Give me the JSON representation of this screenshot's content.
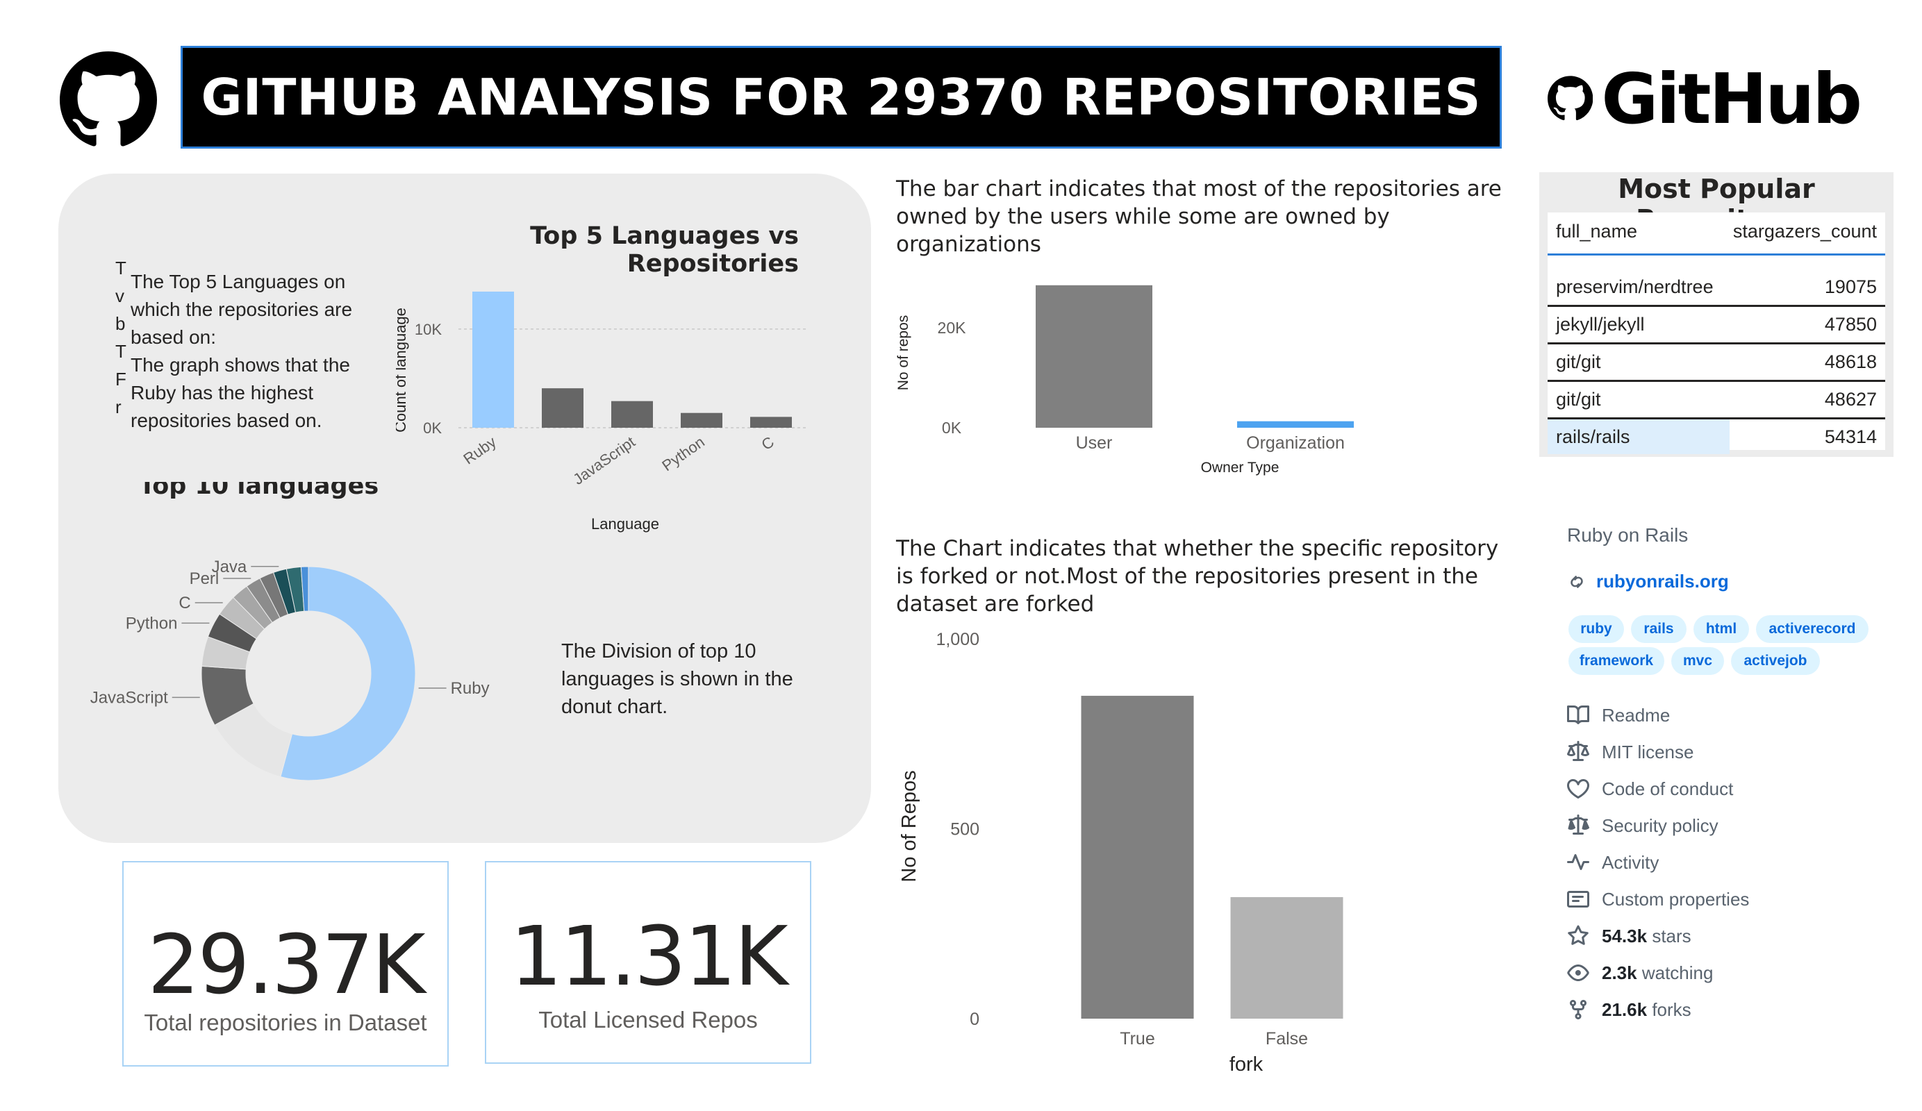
{
  "header": {
    "title": "GITHUB ANALYSIS FOR 29370 REPOSITORIES",
    "brand": "GitHub"
  },
  "languages_panel": {
    "truncated_letters": [
      "T",
      "v",
      "b",
      "T",
      "F",
      "r"
    ],
    "intro_text": [
      "The Top 5 Languages on",
      "which the repositories are",
      "based on:",
      "The graph shows that the",
      "Ruby has the highest",
      "repositories based on."
    ],
    "donut_description": [
      "The Division of top 10",
      "languages is shown in the",
      "donut chart."
    ]
  },
  "top5_chart": {
    "chart_data": {
      "type": "bar",
      "title": "Top 5 Languages vs Repositories",
      "xlabel": "Language",
      "ylabel": "Count of language",
      "categories": [
        "Ruby",
        "",
        "JavaScript",
        "Python",
        "C"
      ],
      "values": [
        13800,
        4000,
        2700,
        1500,
        1100
      ],
      "ylim": [
        0,
        14500
      ],
      "yticks": [
        "0K",
        "10K"
      ],
      "colors": [
        "#99ccff",
        "#666666",
        "#666666",
        "#666666",
        "#666666"
      ],
      "grid": true
    }
  },
  "top10_chart": {
    "chart_data": {
      "type": "pie",
      "title": "Top 10 languages",
      "categories": [
        "Ruby",
        "",
        "JavaScript",
        "",
        "Python",
        "C",
        "",
        "Perl",
        "",
        "Java",
        "",
        ""
      ],
      "values": [
        54.2,
        12.8,
        9.1,
        4.5,
        3.8,
        3.2,
        2.6,
        2.3,
        2.2,
        2.0,
        2.2,
        1.1
      ],
      "labels_shown": [
        "Ruby",
        "JavaScript",
        "Python",
        "C",
        "Perl",
        "Java"
      ],
      "colors": [
        "#9fcdfb",
        "#e6e6e6",
        "#666666",
        "#d0d0d0",
        "#555555",
        "#bdbdbd",
        "#a6a6a6",
        "#8c8c8c",
        "#777777",
        "#1b4f58",
        "#2f6b70",
        "#4a90d9"
      ]
    }
  },
  "owner_chart": {
    "description": [
      "The bar chart indicates that most of the repositories are",
      "owned by the users while some are owned by",
      "organizations"
    ],
    "chart_data": {
      "type": "bar",
      "xlabel": "Owner Type",
      "ylabel": "No of repos",
      "categories": [
        "User",
        "Organization"
      ],
      "values": [
        28500,
        1300
      ],
      "ylim": [
        0,
        30000
      ],
      "yticks": [
        "0K",
        "20K"
      ],
      "colors": [
        "#808080",
        "#4da3f0"
      ]
    }
  },
  "fork_chart": {
    "description": [
      "The Chart indicates that whether the specific repository",
      "is forked or not.Most of the repositories present in the",
      "dataset are forked"
    ],
    "chart_data": {
      "type": "bar",
      "xlabel": "fork",
      "ylabel": "No of Repos",
      "categories": [
        "True",
        "False"
      ],
      "values": [
        850,
        320
      ],
      "ylim": [
        0,
        1000
      ],
      "yticks": [
        "0",
        "500",
        "1,000"
      ],
      "colors": [
        "#808080",
        "#b3b3b3"
      ]
    }
  },
  "kpis": [
    {
      "value": "29.37K",
      "label": "Total repositories in Dataset"
    },
    {
      "value": "11.31K",
      "label": "Total Licensed Repos"
    }
  ],
  "popular_repo": {
    "title": "Most Popular Repository",
    "columns": [
      "full_name",
      "stargazers_count"
    ],
    "rows": [
      {
        "name": "preservim/nerdtree",
        "stars": "19075"
      },
      {
        "name": "jekyll/jekyll",
        "stars": "47850"
      },
      {
        "name": "git/git",
        "stars": "48618"
      },
      {
        "name": "git/git",
        "stars": "48627"
      },
      {
        "name": "rails/rails",
        "stars": "54314"
      }
    ]
  },
  "repo_sidebar": {
    "about": "Ruby on Rails",
    "link": "rubyonrails.org",
    "topics": [
      "ruby",
      "rails",
      "html",
      "activerecord",
      "framework",
      "mvc",
      "activejob"
    ],
    "items": [
      {
        "icon": "book-icon",
        "text": "Readme"
      },
      {
        "icon": "scale-icon",
        "text": "MIT license"
      },
      {
        "icon": "heart-icon",
        "text": "Code of conduct"
      },
      {
        "icon": "scale-icon",
        "text": "Security policy"
      },
      {
        "icon": "pulse-icon",
        "text": "Activity"
      },
      {
        "icon": "note-icon",
        "text": "Custom properties"
      }
    ],
    "stats": [
      {
        "icon": "star-icon",
        "count": "54.3k",
        "unit": "stars"
      },
      {
        "icon": "eye-icon",
        "count": "2.3k",
        "unit": "watching"
      },
      {
        "icon": "fork-icon",
        "count": "21.6k",
        "unit": "forks"
      }
    ]
  },
  "colors": {
    "accent": "#2d7fd8",
    "highlight": "#99ccff",
    "link": "#0969da"
  }
}
